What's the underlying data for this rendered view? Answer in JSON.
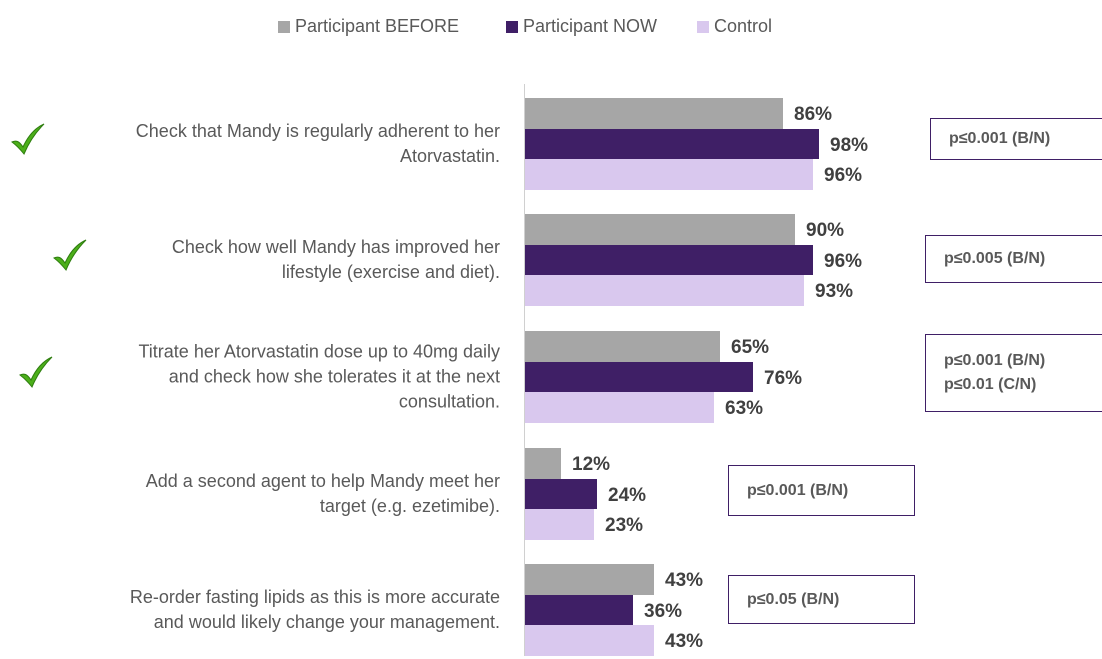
{
  "chart_data": {
    "type": "hbar",
    "categories": [
      "Check that Mandy is regularly adherent to her\nAtorvastatin.",
      "Check how well Mandy has improved her\nlifestyle (exercise and diet).",
      "Titrate her Atorvastatin dose up to 40mg daily\nand check how she tolerates it at the next\nconsultation.",
      "Add a second agent to help Mandy meet her\ntarget (e.g. ezetimibe).",
      "Re-order fasting lipids as this is more accurate\nand would likely change your management."
    ],
    "series": [
      {
        "name": "Participant BEFORE",
        "color": "#a6a6a6",
        "values": [
          86,
          90,
          65,
          12,
          43
        ],
        "value_labels": [
          "86%",
          "90%",
          "65%",
          "12%",
          "43%"
        ]
      },
      {
        "name": "Participant NOW",
        "color": "#3f1f66",
        "values": [
          98,
          96,
          76,
          24,
          36
        ],
        "value_labels": [
          "98%",
          "96%",
          "76%",
          "24%",
          "36%"
        ]
      },
      {
        "name": "Control",
        "color": "#d9c8ee",
        "values": [
          96,
          93,
          63,
          23,
          43
        ],
        "value_labels": [
          "96%",
          "93%",
          "63%",
          "23%",
          "43%"
        ]
      }
    ],
    "annotations": [
      [
        "p≤0.001 (B/N)"
      ],
      [
        "p≤0.005 (B/N)"
      ],
      [
        "p≤0.001 (B/N)",
        "p≤0.01 (C/N)"
      ],
      [
        "p≤0.001 (B/N)"
      ],
      [
        "p≤0.05 (B/N)"
      ]
    ],
    "checkmarks": [
      true,
      true,
      true,
      false,
      false
    ],
    "xlim": [
      0,
      100
    ],
    "legend": "top"
  }
}
